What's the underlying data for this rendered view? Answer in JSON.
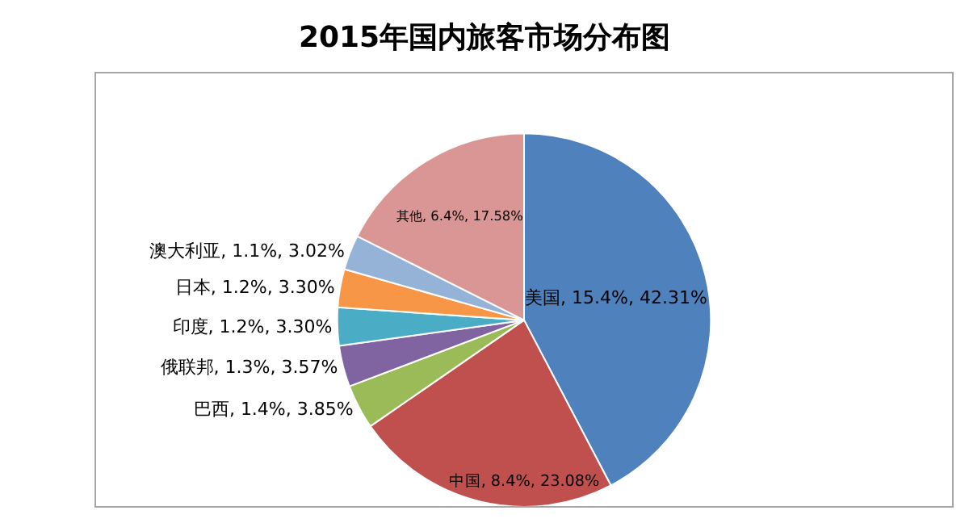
{
  "chart_data": {
    "type": "pie",
    "title": "2015年国内旅客市场分布图",
    "categories": [
      "美国",
      "中国",
      "巴西",
      "俄联邦",
      "印度",
      "日本",
      "澳大利亚",
      "其他"
    ],
    "values": [
      42.31,
      23.08,
      3.85,
      3.57,
      3.3,
      3.3,
      3.02,
      17.58
    ],
    "value_labels": [
      "15.4%, 42.31%",
      "8.4%, 23.08%",
      "1.4%, 3.85%",
      "1.3%, 3.57%",
      "1.2%, 3.30%",
      "1.2%, 3.30%",
      "1.1%, 3.02%",
      "6.4%, 17.58%"
    ],
    "colors": [
      "#4f81bd",
      "#c0504d",
      "#9bbb59",
      "#8064a2",
      "#4bacc6",
      "#f79646",
      "#95b3d7",
      "#d99694"
    ],
    "legend": false
  }
}
